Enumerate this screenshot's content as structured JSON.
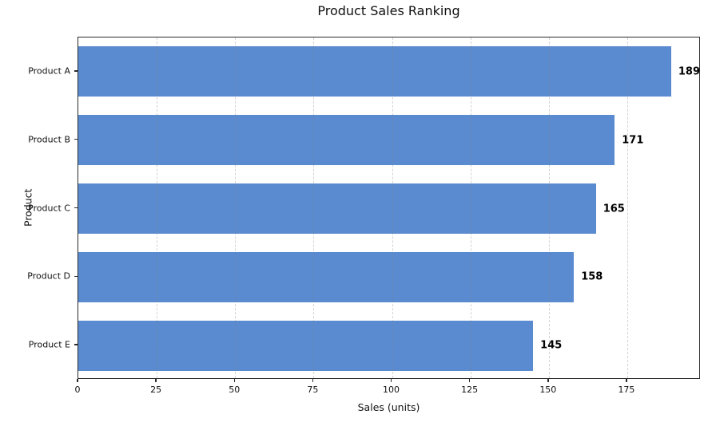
{
  "chart_data": {
    "type": "bar",
    "orientation": "horizontal",
    "title": "Product Sales Ranking",
    "xlabel": "Sales (units)",
    "ylabel": "Product",
    "categories": [
      "Product A",
      "Product B",
      "Product C",
      "Product D",
      "Product E"
    ],
    "values": [
      189,
      171,
      165,
      158,
      145
    ],
    "value_labels": [
      "189",
      "171",
      "165",
      "158",
      "145"
    ],
    "x_ticks": [
      0,
      25,
      50,
      75,
      100,
      125,
      150,
      175
    ],
    "xlim": [
      0,
      198.45
    ],
    "grid": "vertical-dashed",
    "legend": "none",
    "bar_color": "#5A8BD0",
    "grid_color": "#DCDCDC",
    "spine_color": "#2B2B2B",
    "value_label_color": "#000000"
  }
}
